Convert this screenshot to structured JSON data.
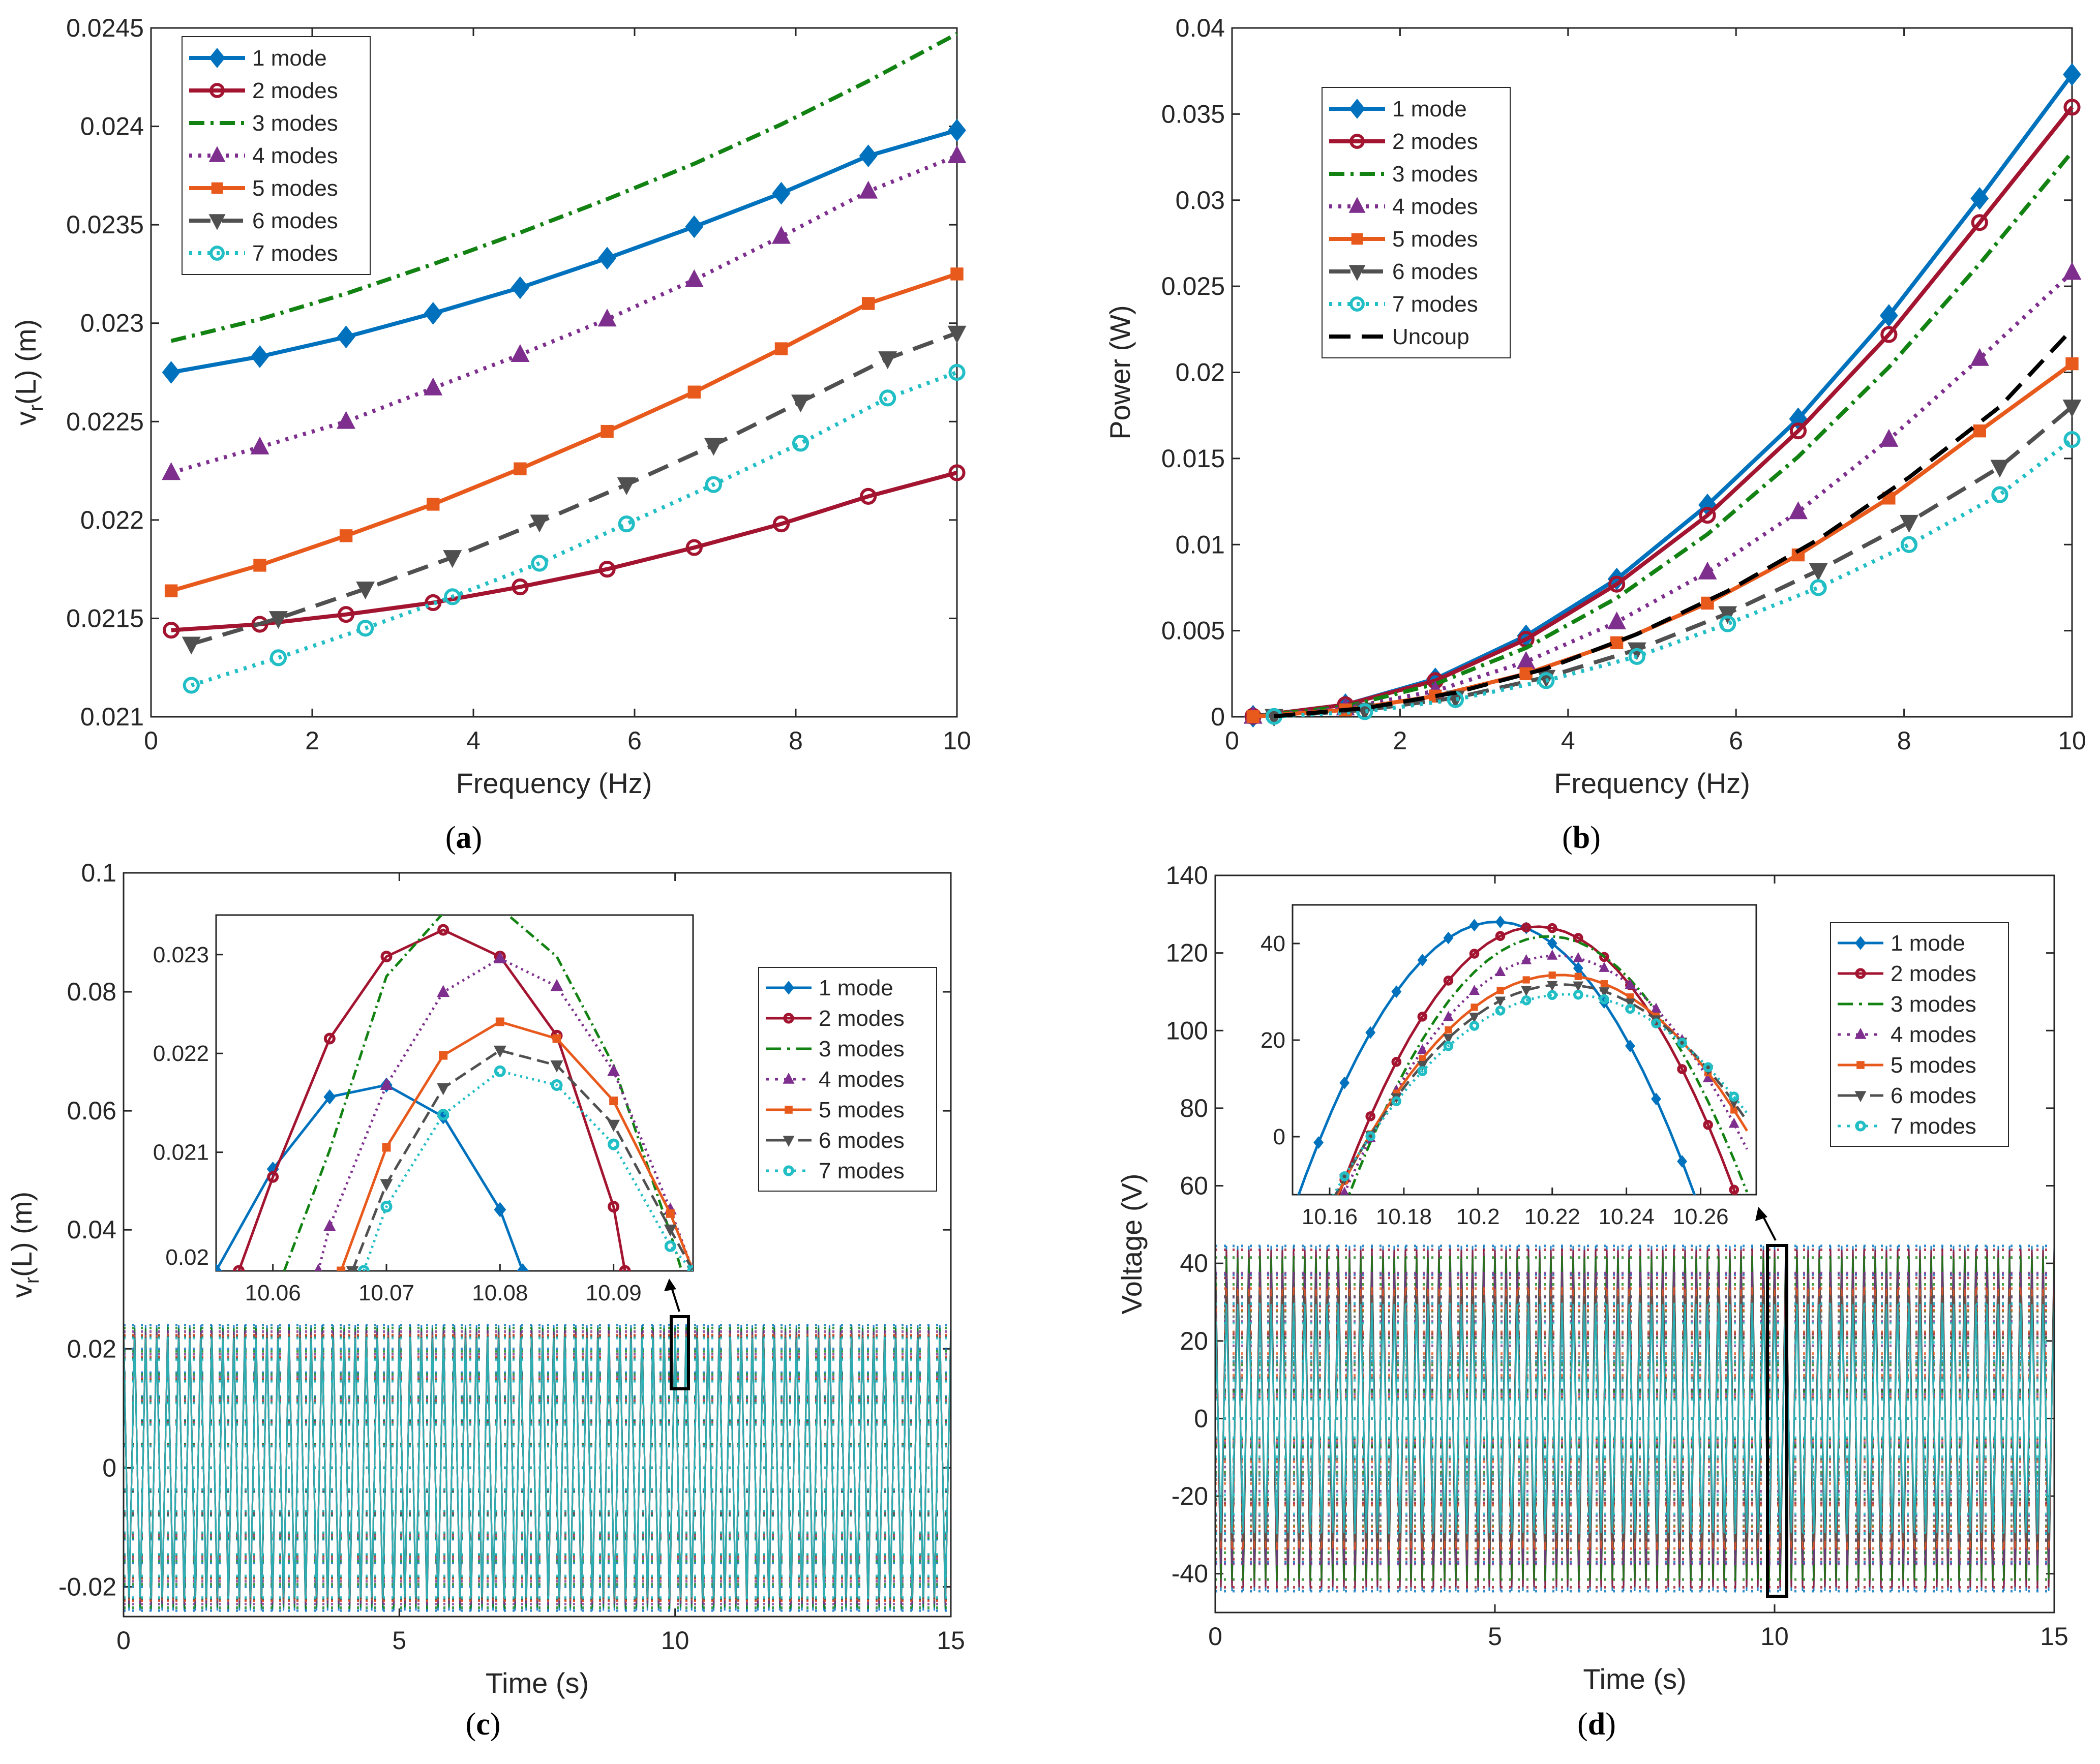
{
  "colors": {
    "m1": "#0072BD",
    "m2": "#A2142F",
    "m3": "#128212",
    "m4": "#7E2F8E",
    "m5": "#E8591C",
    "m6": "#505050",
    "m7": "#22BEC5",
    "uncoup": "#000000"
  },
  "captions": {
    "a": "a",
    "b": "b",
    "c": "c",
    "d": "d"
  },
  "chart_data": [
    {
      "id": "a",
      "type": "line",
      "xlabel": "Frequency (Hz)",
      "ylabel": "v_r(L) (m)",
      "xlim": [
        0,
        10
      ],
      "ylim": [
        0.021,
        0.0245
      ],
      "xticks": [
        "0",
        "2",
        "4",
        "6",
        "8",
        "10"
      ],
      "yticks": [
        "0.021",
        "0.0215",
        "0.022",
        "0.0225",
        "0.023",
        "0.0235",
        "0.024",
        "0.0245"
      ],
      "legend": "top-left",
      "series": [
        {
          "name": "1 mode",
          "key": "m1",
          "dash": "solid",
          "marker": "diamond",
          "x": [
            0.25,
            1.35,
            2.42,
            3.5,
            4.58,
            5.66,
            6.74,
            7.82,
            8.9,
            10.0
          ],
          "y": [
            0.02275,
            0.02283,
            0.02293,
            0.02305,
            0.02318,
            0.02333,
            0.02349,
            0.02366,
            0.02385,
            0.02398
          ]
        },
        {
          "name": "2 modes",
          "key": "m2",
          "dash": "solid",
          "marker": "circle",
          "x": [
            0.25,
            1.35,
            2.42,
            3.5,
            4.58,
            5.66,
            6.74,
            7.82,
            8.9,
            10.0
          ],
          "y": [
            0.02144,
            0.02147,
            0.02152,
            0.02158,
            0.02166,
            0.02175,
            0.02186,
            0.02198,
            0.02212,
            0.02224
          ]
        },
        {
          "name": "3 modes",
          "key": "m3",
          "dash": "dashdot",
          "marker": "none",
          "x": [
            0.25,
            1.35,
            2.42,
            3.5,
            4.58,
            5.66,
            6.74,
            7.82,
            8.9,
            10.0
          ],
          "y": [
            0.02291,
            0.02302,
            0.02315,
            0.0233,
            0.02346,
            0.02363,
            0.02381,
            0.02401,
            0.02423,
            0.02447
          ]
        },
        {
          "name": "4 modes",
          "key": "m4",
          "dash": "dot",
          "marker": "triangle",
          "x": [
            0.25,
            1.35,
            2.42,
            3.5,
            4.58,
            5.66,
            6.74,
            7.82,
            8.9,
            10.0
          ],
          "y": [
            0.02224,
            0.02237,
            0.0225,
            0.02267,
            0.02284,
            0.02302,
            0.02322,
            0.02344,
            0.02367,
            0.02385
          ]
        },
        {
          "name": "5 modes",
          "key": "m5",
          "dash": "solid",
          "marker": "square",
          "x": [
            0.25,
            1.35,
            2.42,
            3.5,
            4.58,
            5.66,
            6.74,
            7.82,
            8.9,
            10.0
          ],
          "y": [
            0.02164,
            0.02177,
            0.02192,
            0.02208,
            0.02226,
            0.02245,
            0.02265,
            0.02287,
            0.0231,
            0.02325
          ]
        },
        {
          "name": "6 modes",
          "key": "m6",
          "dash": "dash",
          "marker": "triangledown",
          "x": [
            0.5,
            1.58,
            2.66,
            3.74,
            4.82,
            5.9,
            6.98,
            8.06,
            9.14,
            10.0
          ],
          "y": [
            0.02137,
            0.0215,
            0.02165,
            0.02181,
            0.02199,
            0.02218,
            0.02238,
            0.0226,
            0.02282,
            0.02295
          ]
        },
        {
          "name": "7 modes",
          "key": "m7",
          "dash": "dot",
          "marker": "circle",
          "x": [
            0.5,
            1.58,
            2.66,
            3.74,
            4.82,
            5.9,
            6.98,
            8.06,
            9.14,
            10.0
          ],
          "y": [
            0.02116,
            0.0213,
            0.02145,
            0.02161,
            0.02178,
            0.02198,
            0.02218,
            0.02239,
            0.02262,
            0.02275
          ]
        }
      ]
    },
    {
      "id": "b",
      "type": "line",
      "xlabel": "Frequency (Hz)",
      "ylabel": "Power (W)",
      "xlim": [
        0,
        10
      ],
      "ylim": [
        0,
        0.04
      ],
      "xticks": [
        "0",
        "2",
        "4",
        "6",
        "8",
        "10"
      ],
      "yticks": [
        "0",
        "0.005",
        "0.01",
        "0.015",
        "0.02",
        "0.025",
        "0.03",
        "0.035",
        "0.04"
      ],
      "legend": "top-left",
      "series": [
        {
          "name": "1 mode",
          "key": "m1",
          "dash": "solid",
          "marker": "diamond",
          "x": [
            0.25,
            1.35,
            2.42,
            3.5,
            4.58,
            5.66,
            6.74,
            7.82,
            8.9,
            10.0
          ],
          "y": [
            3e-05,
            0.0007,
            0.0022,
            0.0047,
            0.008,
            0.0123,
            0.0173,
            0.0233,
            0.0301,
            0.0373
          ]
        },
        {
          "name": "2 modes",
          "key": "m2",
          "dash": "solid",
          "marker": "circle",
          "x": [
            0.25,
            1.35,
            2.42,
            3.5,
            4.58,
            5.66,
            6.74,
            7.82,
            8.9,
            10.0
          ],
          "y": [
            3e-05,
            0.0007,
            0.0021,
            0.0045,
            0.0077,
            0.0117,
            0.0166,
            0.0222,
            0.0287,
            0.0354
          ]
        },
        {
          "name": "3 modes",
          "key": "m3",
          "dash": "dashdot",
          "marker": "none",
          "x": [
            0.25,
            1.35,
            2.42,
            3.5,
            4.58,
            5.66,
            6.74,
            7.82,
            8.9,
            10.0
          ],
          "y": [
            2e-05,
            0.0006,
            0.0019,
            0.004,
            0.0069,
            0.0106,
            0.0151,
            0.0203,
            0.0263,
            0.0328
          ]
        },
        {
          "name": "4 modes",
          "key": "m4",
          "dash": "dot",
          "marker": "triangle",
          "x": [
            0.25,
            1.35,
            2.42,
            3.5,
            4.58,
            5.66,
            6.74,
            7.82,
            8.9,
            10.0
          ],
          "y": [
            2e-05,
            0.0005,
            0.0015,
            0.0032,
            0.0055,
            0.0084,
            0.0119,
            0.0161,
            0.0208,
            0.0258
          ]
        },
        {
          "name": "5 modes",
          "key": "m5",
          "dash": "solid",
          "marker": "square",
          "x": [
            0.25,
            1.35,
            2.42,
            3.5,
            4.58,
            5.66,
            6.74,
            7.82,
            8.9,
            10.0
          ],
          "y": [
            1e-05,
            0.0004,
            0.0012,
            0.0025,
            0.0043,
            0.0066,
            0.0094,
            0.0127,
            0.0166,
            0.0205
          ]
        },
        {
          "name": "6 modes",
          "key": "m6",
          "dash": "dash",
          "marker": "triangledown",
          "x": [
            0.5,
            1.58,
            2.66,
            3.74,
            4.82,
            5.9,
            6.98,
            8.06,
            9.14,
            10.0
          ],
          "y": [
            3e-05,
            0.0004,
            0.0011,
            0.0023,
            0.0039,
            0.006,
            0.0085,
            0.0113,
            0.0145,
            0.018
          ]
        },
        {
          "name": "7 modes",
          "key": "m7",
          "dash": "dot",
          "marker": "circle",
          "x": [
            0.5,
            1.58,
            2.66,
            3.74,
            4.82,
            5.9,
            6.98,
            8.06,
            9.14,
            10.0
          ],
          "y": [
            2e-05,
            0.0003,
            0.001,
            0.0021,
            0.0035,
            0.0054,
            0.0075,
            0.01,
            0.0129,
            0.0161
          ]
        },
        {
          "name": "Uncoup",
          "key": "uncoup",
          "dash": "dash",
          "marker": "none",
          "x": [
            0.5,
            1.58,
            2.66,
            3.74,
            4.82,
            5.9,
            6.98,
            8.06,
            9.14,
            10.0
          ],
          "y": [
            3e-05,
            0.0005,
            0.0014,
            0.0028,
            0.0048,
            0.0073,
            0.0103,
            0.0139,
            0.018,
            0.0225
          ]
        }
      ]
    },
    {
      "id": "c",
      "type": "line",
      "xlabel": "Time (s)",
      "ylabel": "v_r(L) (m)",
      "xlim": [
        0,
        15
      ],
      "ylim": [
        -0.025,
        0.1
      ],
      "xticks": [
        "0",
        "5",
        "10",
        "15"
      ],
      "yticks": [
        "-0.02",
        "0",
        "0.02",
        "0.04",
        "0.06",
        "0.08",
        "0.1"
      ],
      "legend": "right",
      "time_signal": {
        "frequency_hz": 5,
        "amplitudes": [
          0.024,
          0.0223,
          0.0235,
          0.0229,
          0.0223,
          0.022,
          0.0218
        ]
      },
      "inset": {
        "xlim": [
          10.055,
          10.097
        ],
        "ylim": [
          0.0198,
          0.0234
        ],
        "xticks": [
          "10.06",
          "10.07",
          "10.08",
          "10.09"
        ],
        "yticks": [
          "0.021",
          "0.022",
          "0.023"
        ],
        "series": [
          {
            "name": "1 mode",
            "key": "m1",
            "dash": "solid",
            "marker": "diamond",
            "x": [
              10.055,
              10.06,
              10.065,
              10.07,
              10.075,
              10.08,
              10.082
            ],
            "y": [
              0.0198,
              0.02083,
              0.02156,
              0.02168,
              0.02136,
              0.02042,
              0.0198
            ]
          },
          {
            "name": "2 modes",
            "key": "m2",
            "dash": "solid",
            "marker": "circle",
            "x": [
              10.057,
              10.06,
              10.065,
              10.07,
              10.075,
              10.08,
              10.085,
              10.09,
              10.091
            ],
            "y": [
              0.0198,
              0.02075,
              0.02215,
              0.02298,
              0.02325,
              0.02298,
              0.02218,
              0.02045,
              0.0198
            ]
          },
          {
            "name": "3 modes",
            "key": "m3",
            "dash": "dashdot",
            "marker": "none",
            "x": [
              10.061,
              10.065,
              10.07,
              10.075,
              10.08,
              10.085,
              10.09,
              10.095,
              10.096
            ],
            "y": [
              0.0198,
              0.02102,
              0.02278,
              0.02342,
              0.02347,
              0.02298,
              0.02188,
              0.02018,
              0.0198
            ]
          },
          {
            "name": "4 modes",
            "key": "m4",
            "dash": "dot",
            "marker": "triangle",
            "x": [
              10.064,
              10.065,
              10.07,
              10.075,
              10.08,
              10.085,
              10.09,
              10.095,
              10.097
            ],
            "y": [
              0.0198,
              0.02025,
              0.02168,
              0.02262,
              0.02296,
              0.02268,
              0.02182,
              0.02042,
              0.0198
            ]
          },
          {
            "name": "5 modes",
            "key": "m5",
            "dash": "solid",
            "marker": "square",
            "x": [
              10.066,
              10.07,
              10.075,
              10.08,
              10.085,
              10.09,
              10.095,
              10.097
            ],
            "y": [
              0.0198,
              0.02105,
              0.02198,
              0.02232,
              0.02215,
              0.02152,
              0.02038,
              0.0198
            ]
          },
          {
            "name": "6 modes",
            "key": "m6",
            "dash": "dash",
            "marker": "triangledown",
            "x": [
              10.067,
              10.07,
              10.075,
              10.08,
              10.085,
              10.09,
              10.095,
              10.097
            ],
            "y": [
              0.0198,
              0.02068,
              0.02165,
              0.02203,
              0.02188,
              0.02128,
              0.02022,
              0.0198
            ]
          },
          {
            "name": "7 modes",
            "key": "m7",
            "dash": "dot",
            "marker": "circle",
            "x": [
              10.068,
              10.07,
              10.075,
              10.08,
              10.085,
              10.09,
              10.095,
              10.097
            ],
            "y": [
              0.0198,
              0.02045,
              0.02138,
              0.02182,
              0.02168,
              0.02108,
              0.02005,
              0.0198
            ]
          }
        ]
      }
    },
    {
      "id": "d",
      "type": "line",
      "xlabel": "Time (s)",
      "ylabel": "Voltage (V)",
      "xlim": [
        0,
        15
      ],
      "ylim": [
        -50,
        140
      ],
      "xticks": [
        "0",
        "5",
        "10",
        "15"
      ],
      "yticks": [
        "-40",
        "-20",
        "0",
        "20",
        "40",
        "60",
        "80",
        "100",
        "120",
        "140"
      ],
      "legend": "right",
      "time_signal": {
        "frequency_hz": 5,
        "amplitudes": [
          44.5,
          43.5,
          41.5,
          37.5,
          33.5,
          31.5,
          29.5
        ]
      },
      "inset": {
        "xlim": [
          10.15,
          10.275
        ],
        "ylim": [
          -12,
          48
        ],
        "xticks": [
          "10.16",
          "10.18",
          "10.2",
          "10.22",
          "10.24",
          "10.26"
        ],
        "yticks": [
          "0",
          "20",
          "40"
        ],
        "series": [
          {
            "name": "1 mode",
            "key": "m1",
            "dash": "solid",
            "marker": "diamond",
            "center": 10.205,
            "amp": 44.5,
            "half": 0.058,
            "start": 10.15,
            "end": 10.268
          },
          {
            "name": "2 modes",
            "key": "m2",
            "dash": "solid",
            "marker": "circle",
            "center": 10.216,
            "amp": 43.5,
            "half": 0.058,
            "start": 10.15,
            "end": 10.275
          },
          {
            "name": "3 modes",
            "key": "m3",
            "dash": "dashdot",
            "marker": "none",
            "center": 10.219,
            "amp": 41.5,
            "half": 0.058,
            "start": 10.15,
            "end": 10.275
          },
          {
            "name": "4 modes",
            "key": "m4",
            "dash": "dot",
            "marker": "triangle",
            "center": 10.221,
            "amp": 37.5,
            "half": 0.061,
            "start": 10.15,
            "end": 10.275
          },
          {
            "name": "5 modes",
            "key": "m5",
            "dash": "solid",
            "marker": "square",
            "center": 10.222,
            "amp": 33.5,
            "half": 0.063,
            "start": 10.15,
            "end": 10.275
          },
          {
            "name": "6 modes",
            "key": "m6",
            "dash": "dash",
            "marker": "triangledown",
            "center": 10.223,
            "amp": 31.5,
            "half": 0.064,
            "start": 10.15,
            "end": 10.275
          },
          {
            "name": "7 modes",
            "key": "m7",
            "dash": "dot",
            "marker": "circle",
            "center": 10.224,
            "amp": 29.5,
            "half": 0.065,
            "start": 10.15,
            "end": 10.275
          }
        ]
      }
    }
  ]
}
